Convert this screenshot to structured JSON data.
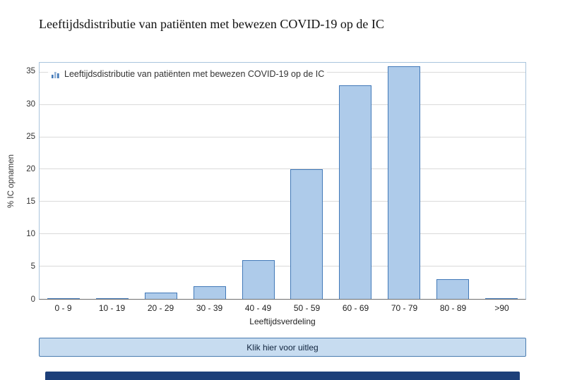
{
  "page_title": "Leeftijdsdistributie van patiënten met bewezen COVID-19 op de IC",
  "chart_data": {
    "type": "bar",
    "title": "Leeftijdsdistributie van patiënten met bewezen COVID-19 op de IC",
    "legend": "Leeftijdsdistributie van patiënten met bewezen COVID-19 op de IC",
    "categories": [
      "0 - 9",
      "10 - 19",
      "20 - 29",
      "30 - 39",
      "40 - 49",
      "50 - 59",
      "60 - 69",
      "70 - 79",
      "80 - 89",
      ">90"
    ],
    "values": [
      0.1,
      0.1,
      1,
      2,
      6,
      20,
      33,
      36,
      3,
      0.1
    ],
    "xlabel": "Leeftijdsverdeling",
    "ylabel": "% IC opnamen",
    "ylim": [
      0,
      36.5
    ],
    "yticks": [
      0,
      5,
      10,
      15,
      20,
      25,
      30,
      35
    ],
    "grid": true,
    "legend_position": "top-left",
    "colors": {
      "bar_fill": "#aecbea",
      "bar_border": "#4279b8",
      "gridline": "#dadada",
      "plot_border": "#a9c4dd",
      "button_bg": "#c7dcf0",
      "button_border": "#4a7cb0",
      "footer_bar": "#1d3f79"
    }
  },
  "button": {
    "label": "Klik hier voor uitleg"
  }
}
